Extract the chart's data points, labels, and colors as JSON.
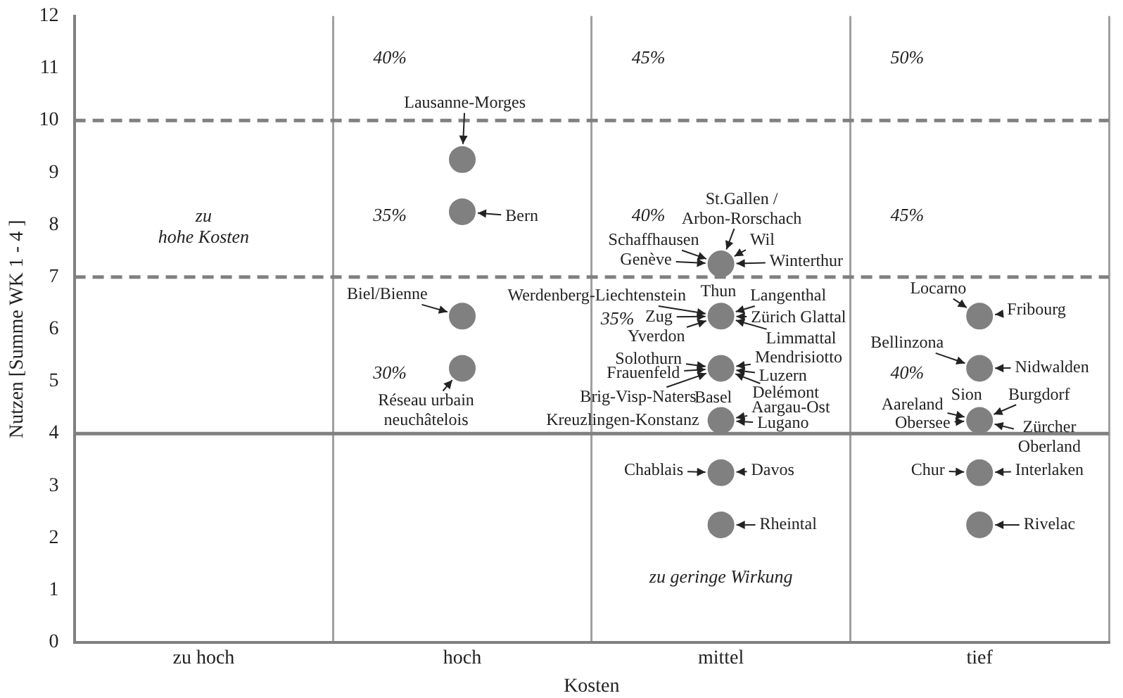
{
  "chart_data": {
    "type": "scatter",
    "xlabel": "Kosten",
    "ylabel": "Nutzen [Summe WK 1 - 4 ]",
    "categories": [
      "zu hoch",
      "hoch",
      "mittel",
      "tief"
    ],
    "series": [
      {
        "color": "#808080",
        "x": [
          "hoch",
          "hoch",
          "hoch",
          "hoch",
          "mittel",
          "mittel",
          "mittel",
          "mittel",
          "mittel",
          "mittel",
          "tief",
          "tief",
          "tief",
          "tief",
          "tief"
        ],
        "values": [
          9.25,
          8.25,
          6.25,
          5.25,
          7.25,
          6.25,
          5.25,
          4.25,
          3.25,
          2.25,
          6.25,
          5.25,
          4.25,
          3.25,
          2.25
        ]
      }
    ],
    "marker": "circle",
    "ylim": [
      0,
      12
    ],
    "yticks": [
      0,
      1,
      2,
      3,
      4,
      5,
      6,
      7,
      8,
      9,
      10,
      11,
      12
    ],
    "grid": "x",
    "ref_lines": [
      {
        "axis": "y",
        "value": 10,
        "color": "#808080",
        "line_style": "dashed"
      },
      {
        "axis": "y",
        "value": 7,
        "color": "#808080",
        "line_style": "dashed"
      },
      {
        "axis": "y",
        "value": 4,
        "color": "#808080",
        "line_style": "solid"
      }
    ],
    "annotations": [
      "zu\nhohe Kosten",
      "zu geringe Wirkung",
      "40%",
      "35%",
      "30%",
      "45%",
      "40%",
      "35%",
      "50%",
      "45%",
      "40%",
      {
        "text": "Lausanne-Morges",
        "x": "hoch",
        "y": 9.25
      },
      {
        "text": "Bern",
        "x": "hoch",
        "y": 8.25
      },
      {
        "text": "Biel/Bienne",
        "x": "hoch",
        "y": 6.25
      },
      {
        "text": "Réseau urbain\nneuchâtelois",
        "x": "hoch",
        "y": 5.25
      },
      {
        "text": "St.Gallen /\nArbon-Rorschach",
        "x": "mittel",
        "y": 7.25
      },
      {
        "text": "Schaffhausen",
        "x": "mittel",
        "y": 7.25
      },
      {
        "text": "Wil",
        "x": "mittel",
        "y": 7.25
      },
      {
        "text": "Genève",
        "x": "mittel",
        "y": 7.25
      },
      {
        "text": "Winterthur",
        "x": "mittel",
        "y": 7.25
      },
      {
        "text": "Thun",
        "x": "mittel",
        "y": 6.25
      },
      {
        "text": "Werdenberg-Liechtenstein",
        "x": "mittel",
        "y": 6.25
      },
      {
        "text": "Langenthal",
        "x": "mittel",
        "y": 6.25
      },
      {
        "text": "Zug",
        "x": "mittel",
        "y": 6.25
      },
      {
        "text": "Zürich Glattal",
        "x": "mittel",
        "y": 6.25
      },
      {
        "text": "Yverdon",
        "x": "mittel",
        "y": 6.25
      },
      {
        "text": "Limmattal",
        "x": "mittel",
        "y": 6.25
      },
      {
        "text": "Solothurn",
        "x": "mittel",
        "y": 5.25
      },
      {
        "text": "Mendrisiotto",
        "x": "mittel",
        "y": 5.25
      },
      {
        "text": "Frauenfeld",
        "x": "mittel",
        "y": 5.25
      },
      {
        "text": "Luzern",
        "x": "mittel",
        "y": 5.25
      },
      {
        "text": "Brig-Visp-Naters",
        "x": "mittel",
        "y": 5.25
      },
      {
        "text": "Basel",
        "x": "mittel",
        "y": 5.25
      },
      {
        "text": "Delémont",
        "x": "mittel",
        "y": 5.25
      },
      {
        "text": "Aargau-Ost",
        "x": "mittel",
        "y": 4.25
      },
      {
        "text": "Kreuzlingen-Konstanz",
        "x": "mittel",
        "y": 4.25
      },
      {
        "text": "Lugano",
        "x": "mittel",
        "y": 4.25
      },
      {
        "text": "Chablais",
        "x": "mittel",
        "y": 3.25
      },
      {
        "text": "Davos",
        "x": "mittel",
        "y": 3.25
      },
      {
        "text": "Rheintal",
        "x": "mittel",
        "y": 2.25
      },
      {
        "text": "Locarno",
        "x": "tief",
        "y": 6.25
      },
      {
        "text": "Fribourg",
        "x": "tief",
        "y": 6.25
      },
      {
        "text": "Bellinzona",
        "x": "tief",
        "y": 5.25
      },
      {
        "text": "Nidwalden",
        "x": "tief",
        "y": 5.25
      },
      {
        "text": "Sion",
        "x": "tief",
        "y": 4.25
      },
      {
        "text": "Burgdorf",
        "x": "tief",
        "y": 4.25
      },
      {
        "text": "Aareland",
        "x": "tief",
        "y": 4.25
      },
      {
        "text": "Obersee",
        "x": "tief",
        "y": 4.25
      },
      {
        "text": "Zürcher\nOberland",
        "x": "tief",
        "y": 4.25
      },
      {
        "text": "Chur",
        "x": "tief",
        "y": 3.25
      },
      {
        "text": "Interlaken",
        "x": "tief",
        "y": 3.25
      },
      {
        "text": "Rivelac",
        "x": "tief",
        "y": 2.25
      }
    ]
  }
}
